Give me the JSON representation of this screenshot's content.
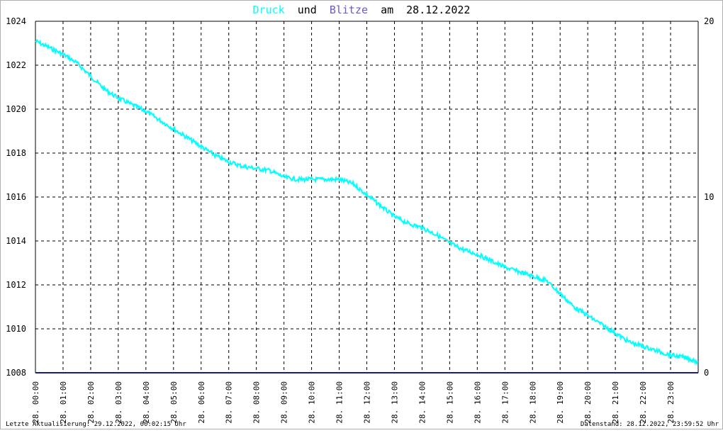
{
  "title": {
    "druck": "Druck",
    "und": "und",
    "blitze": "Blitze",
    "am": "am",
    "date": "28.12.2022"
  },
  "colors": {
    "druck": "#00ffff",
    "blitze": "#6a5acd",
    "text": "#000000",
    "grid": "#000000",
    "blitze_line": "#1a1a80",
    "border": "#b0b0b0"
  },
  "footer": {
    "left": "Letzte Aktualisierung: 29.12.2022, 00:02:15 Uhr",
    "right": "Datenstand: 28.12.2022, 23:59:52 Uhr"
  },
  "chart_data": {
    "type": "line",
    "x_unit": "hours",
    "x_ticks": [
      "28. 00:00",
      "28. 01:00",
      "28. 02:00",
      "28. 03:00",
      "28. 04:00",
      "28. 05:00",
      "28. 06:00",
      "28. 07:00",
      "28. 08:00",
      "28. 09:00",
      "28. 10:00",
      "28. 11:00",
      "28. 12:00",
      "28. 13:00",
      "28. 14:00",
      "28. 15:00",
      "28. 16:00",
      "28. 17:00",
      "28. 18:00",
      "28. 19:00",
      "28. 20:00",
      "28. 21:00",
      "28. 22:00",
      "28. 23:00"
    ],
    "xlim": [
      0,
      24
    ],
    "ylim_left": [
      1008,
      1024
    ],
    "yticks_left": [
      1008,
      1010,
      1012,
      1014,
      1016,
      1018,
      1020,
      1022,
      1024
    ],
    "ylim_right": [
      0,
      20
    ],
    "yticks_right": [
      0,
      10,
      20
    ],
    "grid": true,
    "series": [
      {
        "name": "Druck",
        "axis": "left",
        "x": [
          0,
          0.5,
          1,
          1.5,
          2,
          2.5,
          3,
          3.5,
          4,
          4.5,
          5,
          5.5,
          6,
          6.5,
          7,
          7.5,
          8,
          8.5,
          9,
          9.5,
          10,
          10.5,
          11,
          11.5,
          12,
          12.5,
          13,
          13.5,
          14,
          14.5,
          15,
          15.5,
          16,
          16.5,
          17,
          17.5,
          18,
          18.5,
          19,
          19.5,
          20,
          20.5,
          21,
          21.5,
          22,
          22.5,
          23,
          23.5,
          24
        ],
        "values": [
          1023.1,
          1022.8,
          1022.5,
          1022.1,
          1021.5,
          1020.9,
          1020.5,
          1020.2,
          1019.9,
          1019.5,
          1019.1,
          1018.7,
          1018.3,
          1017.9,
          1017.6,
          1017.4,
          1017.3,
          1017.2,
          1016.9,
          1016.8,
          1016.8,
          1016.8,
          1016.8,
          1016.6,
          1016.1,
          1015.6,
          1015.1,
          1014.8,
          1014.6,
          1014.3,
          1013.9,
          1013.6,
          1013.4,
          1013.1,
          1012.8,
          1012.6,
          1012.4,
          1012.2,
          1011.6,
          1011.0,
          1010.6,
          1010.2,
          1009.8,
          1009.4,
          1009.2,
          1009.0,
          1008.8,
          1008.7,
          1008.5
        ]
      },
      {
        "name": "Blitze",
        "axis": "right",
        "x": [
          0,
          24
        ],
        "values": [
          0,
          0
        ]
      }
    ]
  }
}
